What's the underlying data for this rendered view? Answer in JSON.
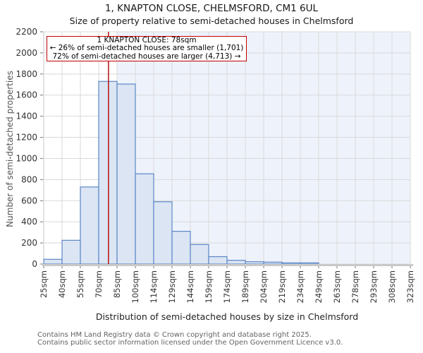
{
  "header": {
    "title": "1, KNAPTON CLOSE, CHELMSFORD, CM1 6UL",
    "subtitle": "Size of property relative to semi-detached houses in Chelmsford"
  },
  "chart_data": {
    "type": "bar",
    "title": "1, KNAPTON CLOSE, CHELMSFORD, CM1 6UL",
    "subtitle": "Size of property relative to semi-detached houses in Chelmsford",
    "xlabel": "Distribution of semi-detached houses by size in Chelmsford",
    "ylabel": "Number of semi-detached properties",
    "categories": [
      "25sqm",
      "40sqm",
      "55sqm",
      "70sqm",
      "85sqm",
      "100sqm",
      "114sqm",
      "129sqm",
      "144sqm",
      "159sqm",
      "174sqm",
      "189sqm",
      "204sqm",
      "219sqm",
      "234sqm",
      "249sqm",
      "263sqm",
      "278sqm",
      "293sqm",
      "308sqm",
      "323sqm"
    ],
    "values": [
      45,
      225,
      730,
      1730,
      1705,
      855,
      590,
      310,
      185,
      70,
      35,
      22,
      18,
      11,
      11,
      0,
      0,
      0,
      0,
      0
    ],
    "ylim": [
      0,
      2200
    ],
    "ytick_step": 200,
    "grid": true,
    "legend": "none",
    "marker": {
      "label": "1 KNAPTON CLOSE",
      "value_sqm": 78,
      "color": "#b30000"
    },
    "shade_from_category_index": 4,
    "annotation": {
      "lines": [
        "1 KNAPTON CLOSE: 78sqm",
        "← 26% of semi-detached houses are smaller (1,701)",
        "72% of semi-detached houses are larger (4,713) →"
      ]
    },
    "colors": {
      "bar_fill": "#dbe5f4",
      "bar_edge": "#5b87c5",
      "shade": "#eef2fb",
      "grid": "#d9d9d9",
      "axis_band": "#c9c9c9",
      "tick": "#777777"
    }
  },
  "footer": {
    "line1": "Contains HM Land Registry data © Crown copyright and database right 2025.",
    "line2": "Contains public sector information licensed under the Open Government Licence v3.0."
  }
}
